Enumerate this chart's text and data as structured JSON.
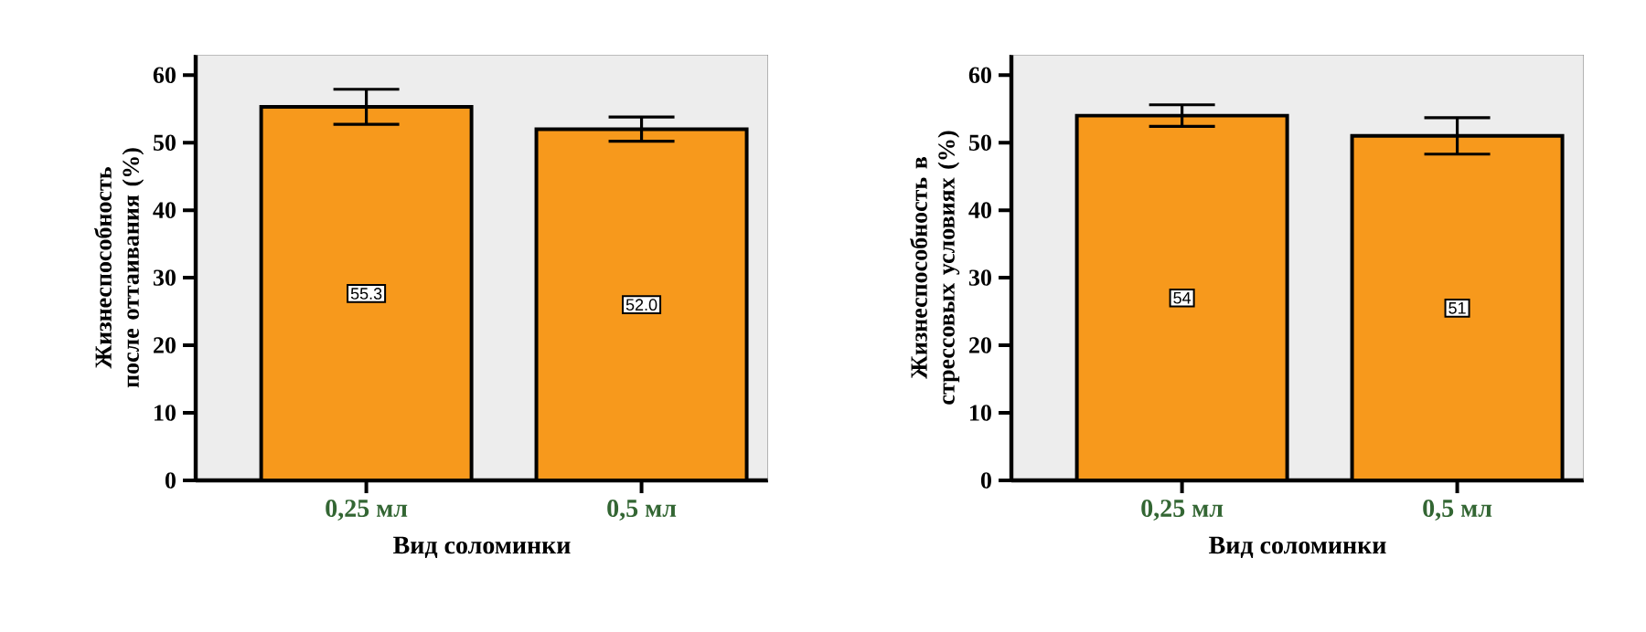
{
  "chart_data": [
    {
      "type": "bar",
      "xlabel": "Вид соломинки",
      "ylabel": "Жизнеспособность после оттаивания (%)",
      "categories": [
        "0,25 мл",
        "0,5 мл"
      ],
      "values": [
        55.3,
        52.0
      ],
      "errors": [
        2.6,
        1.8
      ],
      "value_labels": [
        "55.3",
        "52.0"
      ],
      "color": "#f7991c",
      "ylim": [
        0,
        63
      ],
      "yticks": [
        0,
        10,
        20,
        30,
        40,
        50,
        60
      ],
      "grid": false
    },
    {
      "type": "bar",
      "xlabel": "Вид соломинки",
      "ylabel": "Жизнеспособность в стрессовых условиях (%)",
      "categories": [
        "0,25 мл",
        "0,5 мл"
      ],
      "values": [
        54,
        51
      ],
      "errors": [
        1.6,
        2.7
      ],
      "value_labels": [
        "54",
        "51"
      ],
      "color": "#f7991c",
      "ylim": [
        0,
        63
      ],
      "yticks": [
        0,
        10,
        20,
        30,
        40,
        50,
        60
      ],
      "grid": false
    }
  ]
}
